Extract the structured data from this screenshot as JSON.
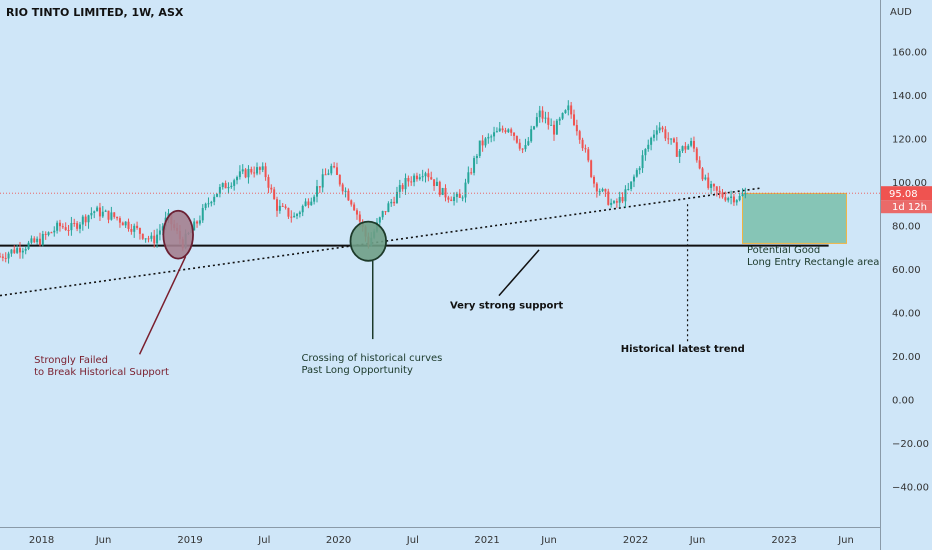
{
  "chart_data": {
    "type": "candlestick",
    "title": "RIO TINTO LIMITED, 1W, ASX",
    "currency": "AUD",
    "ylim": [
      -58,
      178
    ],
    "x_range": [
      2017.72,
      2023.95
    ],
    "y_ticks": [
      -40,
      -20,
      0,
      20,
      40,
      60,
      80,
      100,
      120,
      140,
      160
    ],
    "y_tick_labels": [
      "−40.00",
      "−20.00",
      "0.00",
      "20.00",
      "40.00",
      "60.00",
      "80.00",
      "100.00",
      "120.00",
      "140.00",
      "160.00"
    ],
    "x_ticks": [
      {
        "t": 2018.0,
        "label": "2018"
      },
      {
        "t": 2018.417,
        "label": "Jun"
      },
      {
        "t": 2019.0,
        "label": "2019"
      },
      {
        "t": 2019.5,
        "label": "Jul"
      },
      {
        "t": 2020.0,
        "label": "2020"
      },
      {
        "t": 2020.5,
        "label": "Jul"
      },
      {
        "t": 2021.0,
        "label": "2021"
      },
      {
        "t": 2021.417,
        "label": "Jun"
      },
      {
        "t": 2022.0,
        "label": "2022"
      },
      {
        "t": 2022.417,
        "label": "Jun"
      },
      {
        "t": 2023.0,
        "label": "2023"
      },
      {
        "t": 2023.417,
        "label": "Jun"
      }
    ],
    "price_anchors": [
      [
        2017.72,
        66
      ],
      [
        2017.85,
        70
      ],
      [
        2017.98,
        73
      ],
      [
        2018.12,
        80
      ],
      [
        2018.2,
        79
      ],
      [
        2018.35,
        87
      ],
      [
        2018.5,
        84
      ],
      [
        2018.6,
        80
      ],
      [
        2018.75,
        73
      ],
      [
        2018.85,
        84
      ],
      [
        2018.95,
        72
      ],
      [
        2019.05,
        82
      ],
      [
        2019.15,
        94
      ],
      [
        2019.3,
        102
      ],
      [
        2019.42,
        106
      ],
      [
        2019.5,
        105
      ],
      [
        2019.58,
        89
      ],
      [
        2019.7,
        84
      ],
      [
        2019.82,
        94
      ],
      [
        2019.95,
        107
      ],
      [
        2020.1,
        90
      ],
      [
        2020.2,
        72
      ],
      [
        2020.3,
        86
      ],
      [
        2020.45,
        100
      ],
      [
        2020.58,
        106
      ],
      [
        2020.7,
        95
      ],
      [
        2020.82,
        92
      ],
      [
        2020.95,
        117
      ],
      [
        2021.05,
        122
      ],
      [
        2021.15,
        126
      ],
      [
        2021.25,
        114
      ],
      [
        2021.35,
        132
      ],
      [
        2021.45,
        124
      ],
      [
        2021.55,
        134
      ],
      [
        2021.62,
        123
      ],
      [
        2021.72,
        100
      ],
      [
        2021.85,
        89
      ],
      [
        2021.95,
        96
      ],
      [
        2022.05,
        112
      ],
      [
        2022.15,
        127
      ],
      [
        2022.28,
        114
      ],
      [
        2022.38,
        118
      ],
      [
        2022.48,
        98
      ],
      [
        2022.58,
        94
      ],
      [
        2022.7,
        93
      ],
      [
        2022.75,
        95.08
      ]
    ],
    "current_price": 95.08,
    "current_price_label": "95.08",
    "countdown_label": "1d 12h",
    "lines": [
      {
        "name": "historical-support",
        "style": "solid",
        "from": [
          2017.72,
          71
        ],
        "to": [
          2023.3,
          71
        ]
      },
      {
        "name": "historical-latest-trend",
        "style": "dotted",
        "from": [
          2017.72,
          48
        ],
        "to": [
          2022.85,
          97.5
        ]
      }
    ],
    "entry_rectangle": {
      "t0": 2022.72,
      "t1": 2023.42,
      "y0": 72,
      "y1": 95
    },
    "ellipses": [
      {
        "name": "failed-support-circle",
        "t": 2018.92,
        "y": 76,
        "rt": 0.1,
        "ry": 11,
        "fill": "#a3808f",
        "stroke": "#6b2134"
      },
      {
        "name": "crossing-circle",
        "t": 2020.2,
        "y": 73,
        "rt": 0.12,
        "ry": 9,
        "fill": "#6f9f86",
        "stroke": "#1d3a2a"
      }
    ],
    "annotations": [
      {
        "name": "failed-support-note",
        "lines": [
          "Strongly Failed",
          "to Break Historical Support"
        ],
        "t": 2017.95,
        "y": 17,
        "color": "#7a1f2e",
        "bold": false,
        "pointer_from": [
          2018.66,
          21
        ],
        "pointer_to": [
          2018.97,
          66
        ]
      },
      {
        "name": "crossing-note",
        "lines": [
          "Crossing of historical curves",
          "Past Long Opportunity"
        ],
        "t": 2019.75,
        "y": 18,
        "color": "#1c3a2b",
        "bold": false,
        "pointer_from": [
          2020.23,
          28
        ],
        "pointer_to": [
          2020.23,
          64
        ]
      },
      {
        "name": "strong-support-note",
        "lines": [
          "Very strong support"
        ],
        "t": 2020.75,
        "y": 42,
        "color": "#111111",
        "bold": true,
        "pointer_from": [
          2021.08,
          48
        ],
        "pointer_to": [
          2021.35,
          69
        ]
      },
      {
        "name": "latest-trend-note",
        "lines": [
          "Historical latest trend"
        ],
        "t": 2021.9,
        "y": 22,
        "color": "#111111",
        "bold": true,
        "pointer_from": [
          2022.35,
          27
        ],
        "pointer_to": [
          2022.35,
          91
        ],
        "dotted": true
      },
      {
        "name": "entry-rectangle-note",
        "lines": [
          "Potential Good",
          "Long Entry Rectangle area"
        ],
        "t": 2022.75,
        "y": 67.5,
        "color": "#1c3a2b",
        "bold": false
      }
    ]
  }
}
